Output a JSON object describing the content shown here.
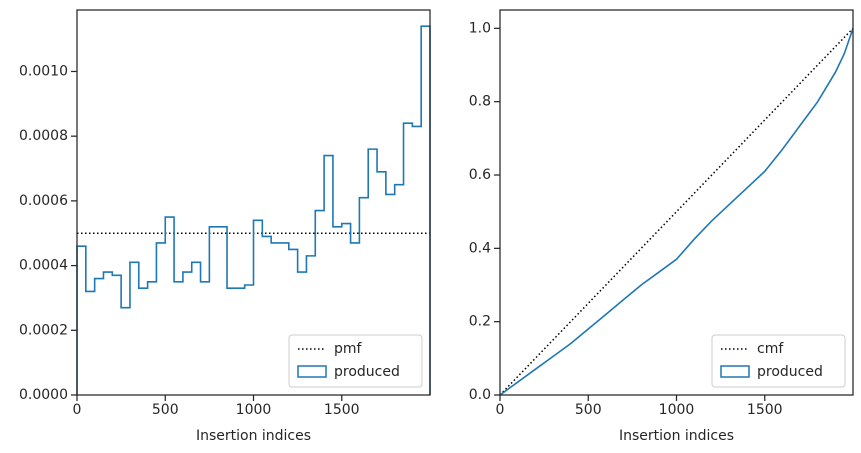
{
  "chart_data": [
    {
      "type": "histogram",
      "xlabel": "Insertion indices",
      "ylabel": "",
      "xlim": [
        0,
        2000
      ],
      "ylim": [
        0,
        0.00119
      ],
      "xticks": [
        0,
        500,
        1000,
        1500
      ],
      "yticks": [
        0,
        0.0002,
        0.0004,
        0.0006,
        0.0008,
        0.001
      ],
      "ytick_labels": [
        "0.0000",
        "0.0002",
        "0.0004",
        "0.0006",
        "0.0008",
        "0.0010"
      ],
      "bin_width": 50,
      "series": [
        {
          "name": "pmf",
          "style": "dotted",
          "color": "#000000",
          "x": [
            0,
            2000
          ],
          "values": [
            0.0005,
            0.0005
          ]
        },
        {
          "name": "produced",
          "style": "step",
          "color": "#1f77b4",
          "bin_edges": [
            0,
            50,
            100,
            150,
            200,
            250,
            300,
            350,
            400,
            450,
            500,
            550,
            600,
            650,
            700,
            750,
            800,
            850,
            900,
            950,
            1000,
            1050,
            1100,
            1150,
            1200,
            1250,
            1300,
            1350,
            1400,
            1450,
            1500,
            1550,
            1600,
            1650,
            1700,
            1750,
            1800,
            1850,
            1900,
            1950,
            2000
          ],
          "values": [
            0.00046,
            0.00032,
            0.00036,
            0.00038,
            0.00037,
            0.00027,
            0.00041,
            0.00033,
            0.00035,
            0.00047,
            0.00055,
            0.00035,
            0.00038,
            0.00041,
            0.00035,
            0.00052,
            0.00052,
            0.00033,
            0.00033,
            0.00034,
            0.00054,
            0.00049,
            0.00047,
            0.00047,
            0.00045,
            0.00038,
            0.00043,
            0.00057,
            0.00074,
            0.00052,
            0.00053,
            0.00047,
            0.00061,
            0.00076,
            0.00069,
            0.00062,
            0.00065,
            0.00084,
            0.00083,
            0.00114
          ]
        }
      ],
      "legend": {
        "position": "bottom-right",
        "entries": [
          "pmf",
          "produced"
        ]
      }
    },
    {
      "type": "line",
      "xlabel": "Insertion indices",
      "ylabel": "",
      "xlim": [
        0,
        2000
      ],
      "ylim": [
        0,
        1.05
      ],
      "xticks": [
        0,
        500,
        1000,
        1500
      ],
      "yticks": [
        0,
        0.2,
        0.4,
        0.6,
        0.8,
        1.0
      ],
      "ytick_labels": [
        "0.0",
        "0.2",
        "0.4",
        "0.6",
        "0.8",
        "1.0"
      ],
      "series": [
        {
          "name": "cmf",
          "style": "dotted",
          "color": "#000000",
          "x": [
            0,
            2000
          ],
          "values": [
            0,
            1.0
          ]
        },
        {
          "name": "produced",
          "style": "solid",
          "color": "#1f77b4",
          "x": [
            0,
            100,
            200,
            300,
            400,
            500,
            600,
            700,
            800,
            900,
            1000,
            1100,
            1200,
            1300,
            1400,
            1500,
            1600,
            1700,
            1800,
            1900,
            1950,
            2000
          ],
          "values": [
            0,
            0.035,
            0.07,
            0.105,
            0.14,
            0.18,
            0.22,
            0.26,
            0.3,
            0.335,
            0.37,
            0.425,
            0.475,
            0.52,
            0.565,
            0.61,
            0.67,
            0.735,
            0.8,
            0.88,
            0.93,
            1.0
          ]
        }
      ],
      "legend": {
        "position": "bottom-right",
        "entries": [
          "cmf",
          "produced"
        ]
      }
    }
  ]
}
